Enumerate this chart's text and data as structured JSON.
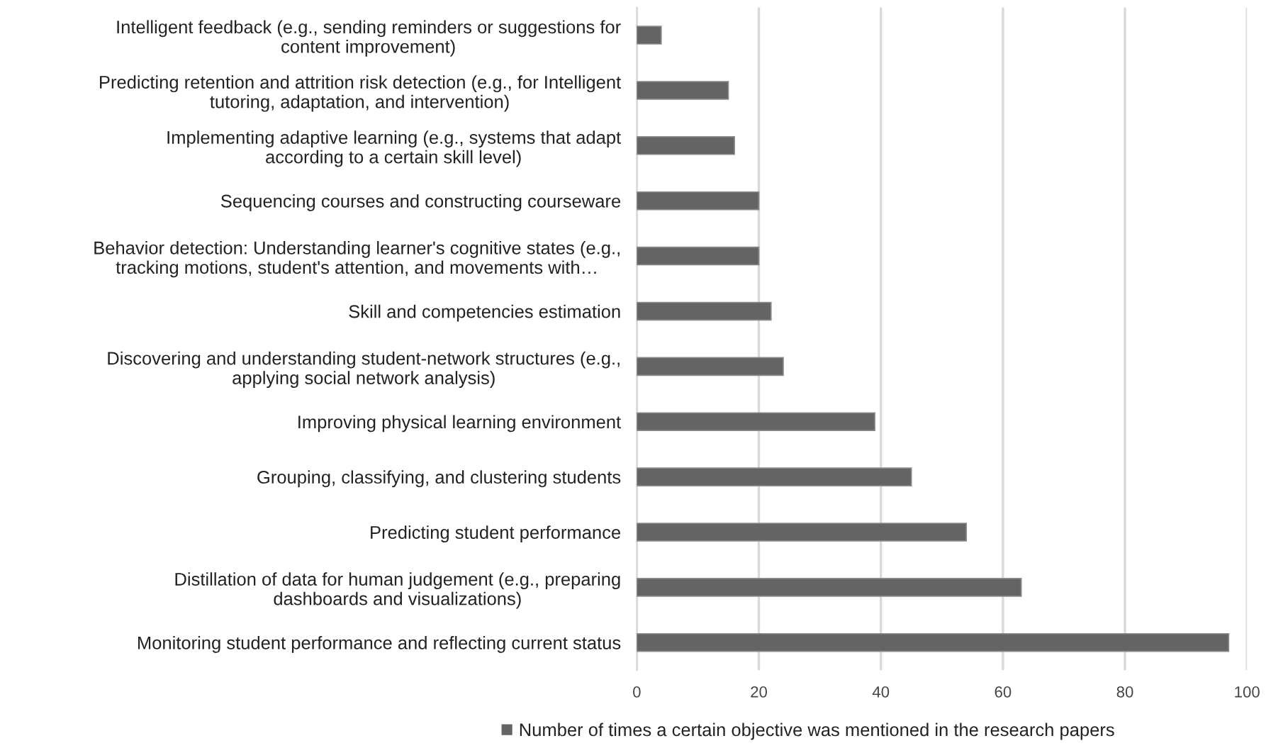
{
  "chart_data": {
    "type": "bar",
    "orientation": "horizontal",
    "categories": [
      "Intelligent feedback (e.g., sending reminders or suggestions for\ncontent improvement)",
      "Predicting retention and attrition risk detection (e.g., for Intelligent\ntutoring, adaptation, and intervention)",
      "Implementing adaptive learning (e.g., systems that adapt\naccording to a certain skill level)",
      "Sequencing courses and constructing courseware",
      "Behavior detection: Understanding learner's cognitive states (e.g.,\ntracking motions, student's attention, and movements with…",
      "Skill and competencies estimation",
      "Discovering and understanding student-network structures (e.g.,\napplying social network analysis)",
      "Improving physical learning environment",
      "Grouping, classifying, and clustering students",
      "Predicting student performance",
      "Distillation of data for human judgement (e.g., preparing\ndashboards and visualizations)",
      "Monitoring student performance and reflecting current status"
    ],
    "series": [
      {
        "name": "Number of times a certain objective was mentioned in the research papers",
        "color": "#646464",
        "values": [
          4,
          15,
          16,
          20,
          20,
          22,
          24,
          39,
          45,
          54,
          63,
          97
        ]
      }
    ],
    "xlim": [
      0,
      100
    ],
    "xticks": [
      0,
      20,
      40,
      60,
      80,
      100
    ],
    "grid": "x",
    "legend": "bottom"
  }
}
